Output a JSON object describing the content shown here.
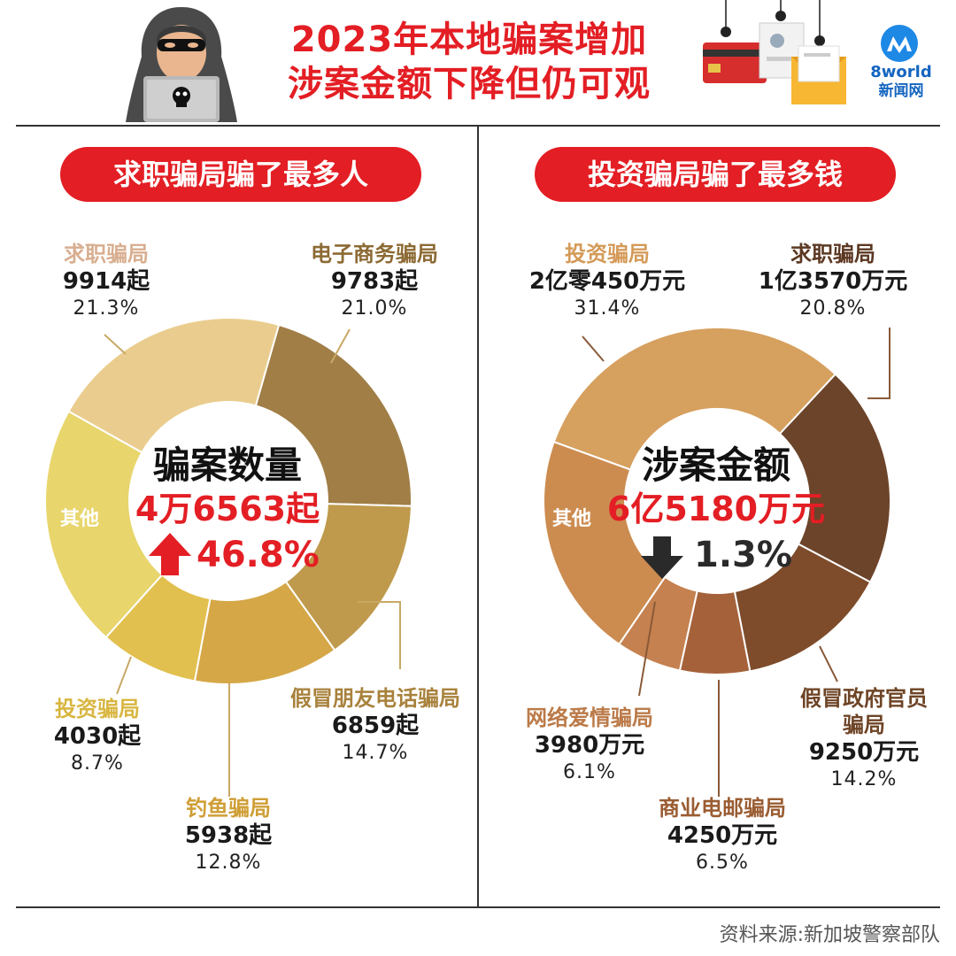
{
  "header": {
    "title_line1": "2023年本地骗案增加",
    "title_line2": "涉案金额下降但仍可观",
    "logo_brand": "8world",
    "logo_sub": "新闻网"
  },
  "left_panel": {
    "heading": "求职骗局骗了最多人",
    "center_title": "骗案数量",
    "center_total": "4万6563起",
    "change_text": "46.8%",
    "change_direction": "up",
    "labels": {
      "job": {
        "name": "求职骗局",
        "value": "9914起",
        "pct": "21.3%"
      },
      "ecom": {
        "name": "电子商务骗局",
        "value": "9783起",
        "pct": "21.0%"
      },
      "fakefriend": {
        "name": "假冒朋友电话骗局",
        "value": "6859起",
        "pct": "14.7%"
      },
      "phishing": {
        "name": "钓鱼骗局",
        "value": "5938起",
        "pct": "12.8%"
      },
      "invest": {
        "name": "投资骗局",
        "value": "4030起",
        "pct": "8.7%"
      },
      "other": {
        "name": "其他"
      }
    }
  },
  "right_panel": {
    "heading": "投资骗局骗了最多钱",
    "center_title": "涉案金额",
    "center_total": "6亿5180万元",
    "change_text": "1.3%",
    "change_direction": "down",
    "labels": {
      "invest": {
        "name": "投资骗局",
        "value": "2亿零450万元",
        "pct": "31.4%"
      },
      "job": {
        "name": "求职骗局",
        "value": "1亿3570万元",
        "pct": "20.8%"
      },
      "gov": {
        "name": "假冒政府官员",
        "name2": "骗局",
        "value": "9250万元",
        "pct": "14.2%"
      },
      "bec": {
        "name": "商业电邮骗局",
        "value": "4250万元",
        "pct": "6.5%"
      },
      "love": {
        "name": "网络爱情骗局",
        "value": "3980万元",
        "pct": "6.1%"
      },
      "other": {
        "name": "其他"
      }
    }
  },
  "chart_data": [
    {
      "type": "pie",
      "title": "骗案数量",
      "center_value": "4万6563起",
      "change": "46.8%",
      "slices": [
        {
          "name": "电子商务骗局",
          "value": 9783,
          "pct": 21.0,
          "color": "#a07e46"
        },
        {
          "name": "假冒朋友电话骗局",
          "value": 6859,
          "pct": 14.7,
          "color": "#bf9a4c"
        },
        {
          "name": "钓鱼骗局",
          "value": 5938,
          "pct": 12.8,
          "color": "#d5a747"
        },
        {
          "name": "投资骗局",
          "value": 4030,
          "pct": 8.7,
          "color": "#e2c04f"
        },
        {
          "name": "其他",
          "pct": 21.5,
          "color": "#e8d56c"
        },
        {
          "name": "求职骗局",
          "value": 9914,
          "pct": 21.3,
          "color": "#eacd8e"
        }
      ]
    },
    {
      "type": "pie",
      "title": "涉案金额",
      "center_value": "6亿5180万元",
      "change": "1.3%",
      "slices": [
        {
          "name": "求职骗局",
          "value": "1亿3570万元",
          "pct": 20.8,
          "color": "#6c442a"
        },
        {
          "name": "假冒政府官员骗局",
          "value": "9250万元",
          "pct": 14.2,
          "color": "#7e4c2b"
        },
        {
          "name": "商业电邮骗局",
          "value": "4250万元",
          "pct": 6.5,
          "color": "#a5623a"
        },
        {
          "name": "网络爱情骗局",
          "value": "3980万元",
          "pct": 6.1,
          "color": "#c5814f"
        },
        {
          "name": "其他",
          "pct": 21.0,
          "color": "#cc8c50"
        },
        {
          "name": "投资骗局",
          "value": "2亿零450万元",
          "pct": 31.4,
          "color": "#d6a05e"
        }
      ]
    }
  ],
  "footer": {
    "source": "资料来源:新加坡警察部队"
  }
}
